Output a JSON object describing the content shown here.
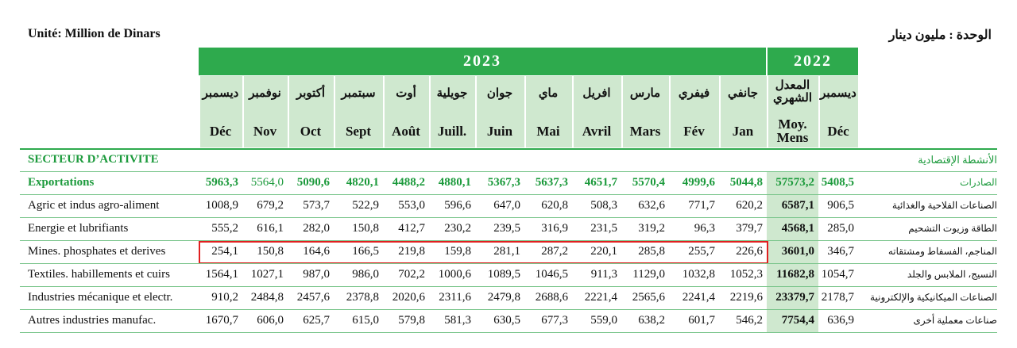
{
  "header": {
    "unit_fr": "Unité: Million de Dinars",
    "unit_ar": "الوحدة : مليون دينار"
  },
  "table": {
    "years": [
      "2023",
      "2022"
    ],
    "columns": [
      {
        "ar": "ديسمبر",
        "fr": "Déc"
      },
      {
        "ar": "نوفمبر",
        "fr": "Nov"
      },
      {
        "ar": "أكتوبر",
        "fr": "Oct"
      },
      {
        "ar": "سبتمبر",
        "fr": "Sept"
      },
      {
        "ar": "أوت",
        "fr": "Août"
      },
      {
        "ar": "جويلية",
        "fr": "Juill."
      },
      {
        "ar": "جوان",
        "fr": "Juin"
      },
      {
        "ar": "ماي",
        "fr": "Mai"
      },
      {
        "ar": "افريل",
        "fr": "Avril"
      },
      {
        "ar": "مارس",
        "fr": "Mars"
      },
      {
        "ar": "فيفري",
        "fr": "Fév"
      },
      {
        "ar": "جانفي",
        "fr": "Jan"
      },
      {
        "ar": "المعدل\nالشهري",
        "fr": "Moy.\nMens"
      },
      {
        "ar": "ديسمبر",
        "fr": "Déc"
      }
    ],
    "sector_fr": "SECTEUR D’ACTIVITE",
    "sector_ar": "الأنشطة الإقتصادية",
    "rows": [
      {
        "fr": "Exportations",
        "ar": "الصادرات",
        "values": [
          "5963,3",
          "5564,0",
          "5090,6",
          "4820,1",
          "4488,2",
          "4880,1",
          "5367,3",
          "5637,3",
          "4651,7",
          "5570,4",
          "4999,6",
          "5044,8",
          "57573,2",
          "5408,5"
        ]
      },
      {
        "fr": "Agric et indus agro-aliment",
        "ar": "الصناعات الفلاحية والغذائية",
        "values": [
          "1008,9",
          "679,2",
          "573,7",
          "522,9",
          "553,0",
          "596,6",
          "647,0",
          "620,8",
          "508,3",
          "632,6",
          "771,7",
          "620,2",
          "6587,1",
          "906,5"
        ]
      },
      {
        "fr": "Energie et lubrifiants",
        "ar": "الطاقة وزيوت التشحيم",
        "values": [
          "555,2",
          "616,1",
          "282,0",
          "150,8",
          "412,7",
          "230,2",
          "239,5",
          "316,9",
          "231,5",
          "319,2",
          "96,3",
          "379,7",
          "4568,1",
          "285,0"
        ]
      },
      {
        "fr": "Mines. phosphates et derives",
        "ar": "المناجم، الفسفاط ومشتقاته",
        "values": [
          "254,1",
          "150,8",
          "164,6",
          "166,5",
          "219,8",
          "159,8",
          "281,1",
          "287,2",
          "220,1",
          "285,8",
          "255,7",
          "226,6",
          "3601,0",
          "346,7"
        ]
      },
      {
        "fr": "Textiles. habillements et cuirs",
        "ar": "النسيج، الملابس والجلد",
        "values": [
          "1564,1",
          "1027,1",
          "987,0",
          "986,0",
          "702,2",
          "1000,6",
          "1089,5",
          "1046,5",
          "911,3",
          "1129,0",
          "1032,8",
          "1052,3",
          "11682,8",
          "1054,7"
        ]
      },
      {
        "fr": "Industries mécanique et electr.",
        "ar": "الصناعات الميكانيكية والإلكترونية",
        "values": [
          "910,2",
          "2484,8",
          "2457,6",
          "2378,8",
          "2020,6",
          "2311,6",
          "2479,8",
          "2688,6",
          "2221,4",
          "2565,6",
          "2241,4",
          "2219,6",
          "23379,7",
          "2178,7"
        ]
      },
      {
        "fr": "Autres industries manufac.",
        "ar": "صناعات معملية أخرى",
        "values": [
          "1670,7",
          "606,0",
          "625,7",
          "615,0",
          "579,8",
          "581,3",
          "630,5",
          "677,3",
          "559,0",
          "638,2",
          "601,7",
          "546,2",
          "7754,4",
          "636,9"
        ]
      }
    ]
  }
}
